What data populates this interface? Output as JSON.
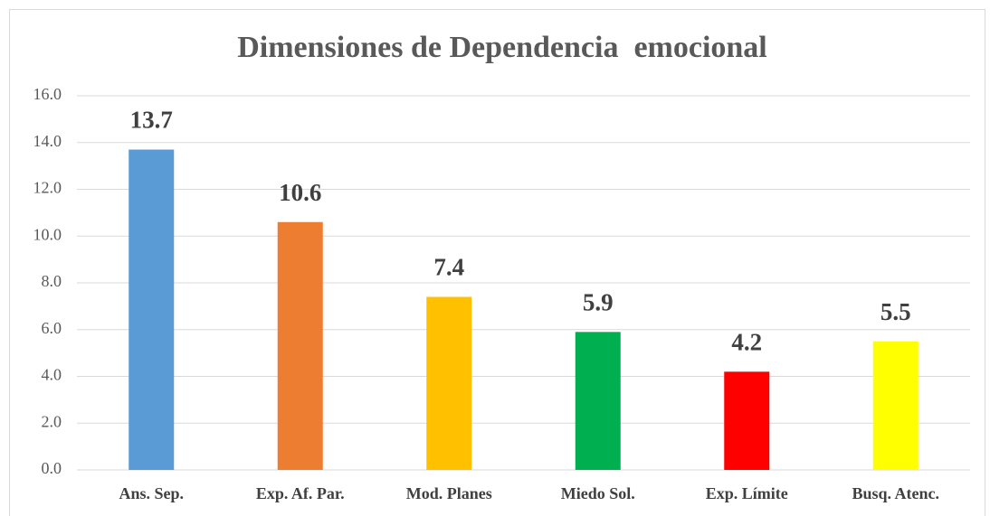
{
  "chart_data": {
    "type": "bar",
    "title": "Dimensiones de Dependencia  emocional",
    "categories": [
      "Ans. Sep.",
      "Exp. Af. Par.",
      "Mod. Planes",
      "Miedo Sol.",
      "Exp. Límite",
      "Busq. Atenc."
    ],
    "values": [
      13.7,
      10.6,
      7.4,
      5.9,
      4.2,
      5.5
    ],
    "colors": [
      "#5b9bd5",
      "#ed7d31",
      "#ffc000",
      "#00b050",
      "#ff0000",
      "#ffff00"
    ],
    "ylim": [
      0,
      16
    ],
    "yticks": [
      {
        "value": 0,
        "label": "0.0"
      },
      {
        "value": 2,
        "label": "2.0"
      },
      {
        "value": 4,
        "label": "4.0"
      },
      {
        "value": 6,
        "label": "6.0"
      },
      {
        "value": 8,
        "label": "8.0"
      },
      {
        "value": 10,
        "label": "10.0"
      },
      {
        "value": 12,
        "label": "12.0"
      },
      {
        "value": 14,
        "label": "14.0"
      },
      {
        "value": 16,
        "label": "16.0"
      }
    ],
    "grid": true
  }
}
